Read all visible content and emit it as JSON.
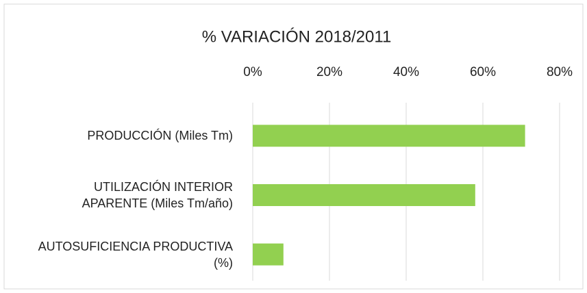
{
  "chart_data": {
    "type": "bar",
    "orientation": "horizontal",
    "title": "% VARIACIÓN 2018/2011",
    "categories": [
      "PRODUCCIÓN (Miles Tm)",
      "UTILIZACIÓN INTERIOR APARENTE (Miles Tm/año)",
      "AUTOSUFICIENCIA PRODUCTIVA (%)"
    ],
    "values": [
      71,
      58,
      8
    ],
    "color": "#92d050",
    "xlim": [
      0,
      80
    ],
    "xticks": [
      {
        "value": 0,
        "label": "0%"
      },
      {
        "value": 20,
        "label": "20%"
      },
      {
        "value": 40,
        "label": "40%"
      },
      {
        "value": 60,
        "label": "60%"
      },
      {
        "value": 80,
        "label": "80%"
      }
    ],
    "grid": true
  }
}
